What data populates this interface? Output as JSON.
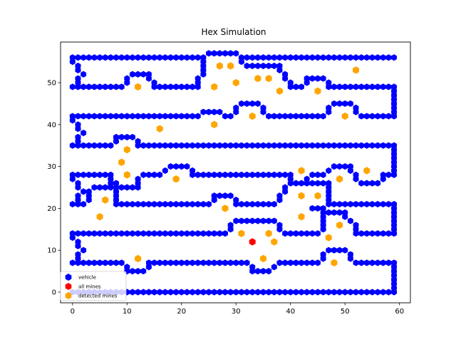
{
  "chart_data": {
    "type": "scatter",
    "title": "Hex Simulation",
    "xlabel": "",
    "ylabel": "",
    "xlim": [
      -2.2,
      62
    ],
    "ylim": [
      -2.55,
      59.7
    ],
    "xticks": [
      0,
      10,
      20,
      30,
      40,
      50,
      60
    ],
    "yticks": [
      0,
      10,
      20,
      30,
      40,
      50
    ],
    "grid": false,
    "legend": {
      "placement": "lower-left",
      "entries": [
        {
          "label": "vehicle",
          "color": "#0000ff"
        },
        {
          "label": "all mines",
          "color": "#ff0000"
        },
        {
          "label": "detected mines",
          "color": "#ffa500"
        }
      ]
    },
    "series": [
      {
        "name": "vehicle",
        "marker": "hexagon",
        "color": "#0000ff",
        "polylines": [
          [
            [
              0,
              56
            ],
            [
              24,
              56
            ],
            [
              25,
              57
            ],
            [
              30,
              57
            ],
            [
              31,
              56
            ],
            [
              59,
              56
            ]
          ],
          [
            [
              31,
              56
            ],
            [
              31,
              55
            ],
            [
              32,
              54
            ],
            [
              38,
              54
            ],
            [
              38,
              53
            ],
            [
              39,
              52
            ],
            [
              39,
              51
            ],
            [
              40,
              50
            ],
            [
              40,
              49
            ],
            [
              42,
              49
            ],
            [
              43,
              50
            ],
            [
              43,
              51
            ],
            [
              46,
              51
            ],
            [
              47,
              50
            ],
            [
              47,
              49
            ],
            [
              59,
              49
            ],
            [
              59,
              42
            ],
            [
              53,
              42
            ],
            [
              52,
              43
            ],
            [
              52,
              44
            ],
            [
              51,
              45
            ],
            [
              48,
              45
            ],
            [
              47,
              44
            ],
            [
              47,
              43
            ],
            [
              46,
              42
            ],
            [
              36,
              42
            ],
            [
              35,
              43
            ],
            [
              35,
              44
            ],
            [
              34,
              45
            ],
            [
              31,
              45
            ],
            [
              30,
              44
            ],
            [
              30,
              43
            ],
            [
              29,
              42
            ],
            [
              28,
              42
            ],
            [
              27,
              43
            ],
            [
              24,
              43
            ],
            [
              23,
              42
            ],
            [
              0,
              42
            ]
          ],
          [
            [
              0,
              56
            ],
            [
              0,
              55
            ],
            [
              1,
              54
            ],
            [
              1,
              53
            ],
            [
              2,
              52
            ],
            [
              1,
              51
            ],
            [
              1,
              50
            ],
            [
              0,
              49
            ],
            [
              9,
              49
            ],
            [
              10,
              50
            ],
            [
              10,
              51
            ],
            [
              11,
              52
            ],
            [
              14,
              52
            ],
            [
              14,
              51
            ],
            [
              15,
              50
            ],
            [
              15,
              49
            ],
            [
              23,
              49
            ],
            [
              23,
              50
            ],
            [
              23,
              51
            ],
            [
              24,
              52
            ],
            [
              24,
              56
            ]
          ],
          [
            [
              0,
              42
            ],
            [
              0,
              41
            ],
            [
              1,
              40
            ],
            [
              1,
              39
            ],
            [
              2,
              38
            ],
            [
              1,
              37
            ],
            [
              1,
              36
            ],
            [
              0,
              35
            ],
            [
              7,
              35
            ],
            [
              8,
              36
            ],
            [
              8,
              37
            ],
            [
              11,
              37
            ],
            [
              12,
              36
            ],
            [
              12,
              35
            ],
            [
              59,
              35
            ],
            [
              59,
              28
            ],
            [
              57,
              28
            ],
            [
              57,
              27
            ],
            [
              56,
              26
            ],
            [
              53,
              26
            ],
            [
              52,
              27
            ],
            [
              52,
              28
            ],
            [
              51,
              29
            ],
            [
              51,
              30
            ],
            [
              48,
              30
            ],
            [
              47,
              29
            ],
            [
              46,
              28
            ],
            [
              44,
              28
            ],
            [
              43,
              27
            ],
            [
              42,
              26
            ]
          ],
          [
            [
              0,
              28
            ],
            [
              7,
              28
            ],
            [
              7,
              27
            ],
            [
              7,
              26
            ]
          ],
          [
            [
              0,
              28
            ],
            [
              0,
              27
            ],
            [
              1,
              26
            ],
            [
              1,
              25
            ],
            [
              2,
              24
            ],
            [
              1,
              23
            ],
            [
              1,
              22
            ],
            [
              0,
              21
            ],
            [
              2,
              21
            ]
          ],
          [
            [
              3,
              22
            ],
            [
              3,
              23
            ],
            [
              3,
              24
            ],
            [
              4,
              25
            ],
            [
              12,
              25
            ],
            [
              12,
              26
            ],
            [
              12,
              27
            ],
            [
              13,
              28
            ],
            [
              16,
              28
            ],
            [
              17,
              29
            ],
            [
              18,
              30
            ],
            [
              21,
              30
            ],
            [
              22,
              29
            ],
            [
              22,
              28
            ],
            [
              40,
              28
            ],
            [
              40,
              27
            ],
            [
              41,
              26
            ],
            [
              47,
              26
            ],
            [
              47,
              21
            ],
            [
              59,
              21
            ],
            [
              59,
              14
            ],
            [
              52,
              14
            ],
            [
              52,
              15
            ],
            [
              52,
              16
            ],
            [
              51,
              17
            ],
            [
              50,
              18
            ],
            [
              50,
              19
            ],
            [
              47,
              19
            ]
          ],
          [
            [
              8,
              26
            ],
            [
              8,
              21
            ],
            [
              25,
              21
            ],
            [
              26,
              22
            ],
            [
              26,
              23
            ],
            [
              29,
              23
            ],
            [
              30,
              22
            ],
            [
              30,
              21
            ],
            [
              37,
              21
            ],
            [
              38,
              22
            ],
            [
              38,
              23
            ],
            [
              39,
              24
            ],
            [
              39,
              25
            ],
            [
              40,
              26
            ]
          ],
          [
            [
              44,
              20
            ],
            [
              46,
              20
            ],
            [
              46,
              15
            ],
            [
              45,
              14
            ],
            [
              39,
              14
            ],
            [
              38,
              15
            ],
            [
              38,
              16
            ],
            [
              37,
              17
            ],
            [
              30,
              17
            ],
            [
              29,
              16
            ],
            [
              29,
              15
            ],
            [
              28,
              14
            ],
            [
              0,
              14
            ]
          ],
          [
            [
              0,
              14
            ],
            [
              0,
              13
            ],
            [
              1,
              12
            ],
            [
              1,
              11
            ],
            [
              2,
              10
            ],
            [
              1,
              9
            ],
            [
              1,
              8
            ],
            [
              0,
              7
            ],
            [
              9,
              7
            ],
            [
              10,
              6
            ],
            [
              10,
              5
            ],
            [
              13,
              5
            ],
            [
              14,
              6
            ],
            [
              14,
              7
            ],
            [
              32,
              7
            ],
            [
              33,
              6
            ],
            [
              33,
              5
            ],
            [
              36,
              5
            ],
            [
              37,
              6
            ],
            [
              38,
              7
            ],
            [
              45,
              7
            ],
            [
              46,
              8
            ],
            [
              46,
              9
            ],
            [
              47,
              10
            ],
            [
              50,
              10
            ],
            [
              51,
              9
            ],
            [
              51,
              8
            ],
            [
              52,
              7
            ],
            [
              59,
              7
            ],
            [
              59,
              0
            ],
            [
              0,
              0
            ]
          ]
        ]
      },
      {
        "name": "all mines",
        "marker": "hexagon",
        "color": "#ff0000",
        "points": [
          [
            33,
            12
          ]
        ]
      },
      {
        "name": "detected mines",
        "marker": "hexagon",
        "color": "#ffa500",
        "points": [
          [
            27,
            54
          ],
          [
            29,
            54
          ],
          [
            52,
            53
          ],
          [
            34,
            51
          ],
          [
            36,
            51
          ],
          [
            12,
            49
          ],
          [
            26,
            49
          ],
          [
            30,
            50
          ],
          [
            38,
            48
          ],
          [
            45,
            48
          ],
          [
            33,
            42
          ],
          [
            50,
            42
          ],
          [
            16,
            39
          ],
          [
            26,
            40
          ],
          [
            10,
            34
          ],
          [
            9,
            31
          ],
          [
            10,
            28
          ],
          [
            19,
            27
          ],
          [
            42,
            29
          ],
          [
            54,
            29
          ],
          [
            49,
            27
          ],
          [
            42,
            23
          ],
          [
            45,
            23
          ],
          [
            6,
            22
          ],
          [
            5,
            18
          ],
          [
            28,
            20
          ],
          [
            42,
            18
          ],
          [
            49,
            16
          ],
          [
            31,
            14
          ],
          [
            36,
            14
          ],
          [
            37,
            12
          ],
          [
            47,
            13
          ],
          [
            35,
            8
          ],
          [
            12,
            8
          ],
          [
            48,
            7
          ]
        ]
      }
    ]
  }
}
